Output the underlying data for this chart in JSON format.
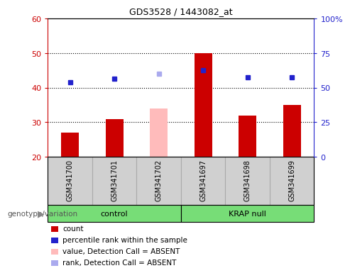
{
  "title": "GDS3528 / 1443082_at",
  "samples": [
    "GSM341700",
    "GSM341701",
    "GSM341702",
    "GSM341697",
    "GSM341698",
    "GSM341699"
  ],
  "bar_values": [
    27,
    31,
    34,
    50,
    32,
    35
  ],
  "bar_colors": [
    "#cc0000",
    "#cc0000",
    "#ffbbbb",
    "#cc0000",
    "#cc0000",
    "#cc0000"
  ],
  "dot_values": [
    41.5,
    42.5,
    44.0,
    45.0,
    43.0,
    43.0
  ],
  "dot_colors": [
    "#2222cc",
    "#2222cc",
    "#aaaaee",
    "#2222cc",
    "#2222cc",
    "#2222cc"
  ],
  "ylim_left": [
    20,
    60
  ],
  "ylim_right": [
    0,
    100
  ],
  "yticks_left": [
    20,
    30,
    40,
    50,
    60
  ],
  "yticks_right": [
    0,
    25,
    50,
    75,
    100
  ],
  "ytick_labels_right": [
    "0",
    "25",
    "50",
    "75",
    "100%"
  ],
  "left_axis_color": "#cc0000",
  "right_axis_color": "#2222cc",
  "group_spans": [
    {
      "label": "control",
      "start": 0,
      "end": 2
    },
    {
      "label": "KRAP null",
      "start": 3,
      "end": 5
    }
  ],
  "group_color": "#77dd77",
  "sample_bg": "#d0d0d0",
  "legend_items": [
    {
      "label": "count",
      "color": "#cc0000"
    },
    {
      "label": "percentile rank within the sample",
      "color": "#2222cc"
    },
    {
      "label": "value, Detection Call = ABSENT",
      "color": "#ffbbbb"
    },
    {
      "label": "rank, Detection Call = ABSENT",
      "color": "#aaaaee"
    }
  ],
  "genotype_label": "genotype/variation",
  "dot_size": 5
}
